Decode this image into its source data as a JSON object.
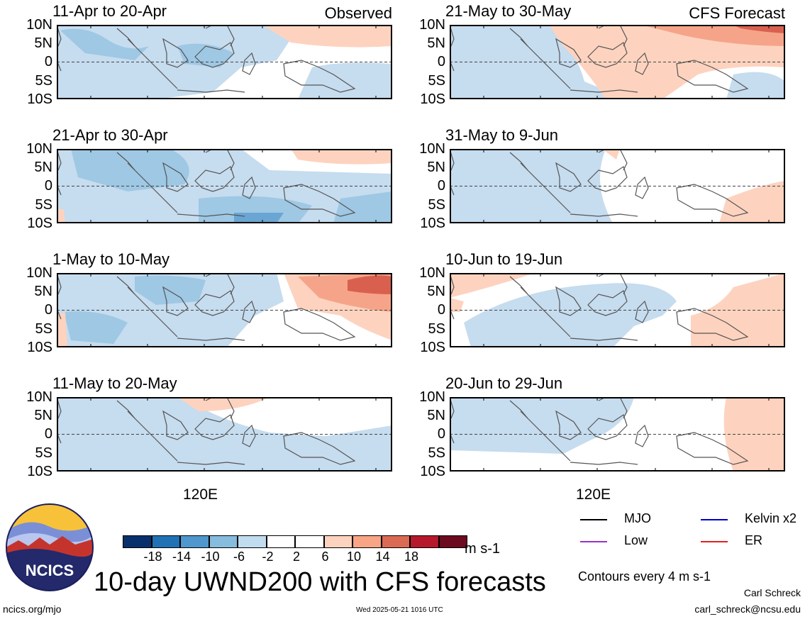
{
  "panels": [
    {
      "title": "11-Apr to 20-Apr",
      "tag": "Observed"
    },
    {
      "title": "21-Apr to 30-Apr",
      "tag": ""
    },
    {
      "title": "1-May to 10-May",
      "tag": ""
    },
    {
      "title": "11-May to 20-May",
      "tag": ""
    },
    {
      "title": "21-May to 30-May",
      "tag": "CFS Forecast"
    },
    {
      "title": "31-May to 9-Jun",
      "tag": ""
    },
    {
      "title": "10-Jun to 19-Jun",
      "tag": ""
    },
    {
      "title": "20-Jun to 29-Jun",
      "tag": ""
    }
  ],
  "lat_labels": [
    "10N",
    "5N",
    "0",
    "5S",
    "10S"
  ],
  "lon_label": "120E",
  "colorbar": {
    "colors": [
      "#08306b",
      "#2171b5",
      "#4f97cc",
      "#86bcdd",
      "#c1dcee",
      "#ffffff",
      "#ffffff",
      "#fdd3bf",
      "#f8a585",
      "#db6a55",
      "#b5192b",
      "#6c0a1f"
    ],
    "ticks": [
      "-18",
      "-14",
      "-10",
      "-6",
      "-2",
      "2",
      "6",
      "10",
      "14",
      "18"
    ],
    "unit": "m s-1"
  },
  "legend": [
    {
      "label": "MJO",
      "color": "#000000"
    },
    {
      "label": "Kelvin x2",
      "color": "#0000cc"
    },
    {
      "label": "Low",
      "color": "#9933cc"
    },
    {
      "label": "ER",
      "color": "#e02020"
    }
  ],
  "contours_note": "Contours every 4 m s-1",
  "main_title": "10-day UWND200 with CFS forecasts",
  "logo_text": "NCICS",
  "footer": {
    "left": "ncics.org/mjo",
    "center": "Wed 2025-05-21 1016 UTC",
    "author": "Carl Schreck",
    "email": "carl_schreck@ncsu.edu"
  }
}
